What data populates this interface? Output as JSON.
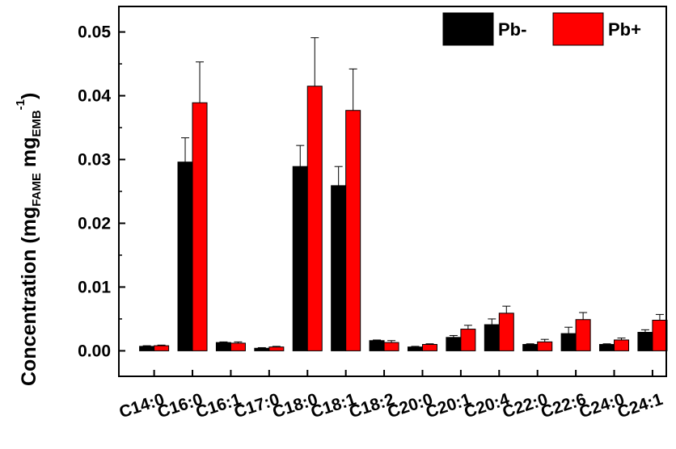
{
  "chart_data": {
    "type": "bar",
    "ylabel": {
      "main": "Concentration (mg",
      "sub1": "FAME",
      "mid": " mg",
      "sub2": "EMB",
      "sup": "-1",
      "close": ")"
    },
    "xlabel": "",
    "ylim": [
      -0.004,
      0.054
    ],
    "yticks": [
      "0.00",
      "0.01",
      "0.02",
      "0.03",
      "0.04",
      "0.05"
    ],
    "ytick_values": [
      0.0,
      0.01,
      0.02,
      0.03,
      0.04,
      0.05
    ],
    "grid": false,
    "legend_position": "top-right",
    "categories": [
      "C14:0",
      "C16:0",
      "C16:1",
      "C17:0",
      "C18:0",
      "C18:1",
      "C18:2",
      "C20:0",
      "C20:1",
      "C20:4",
      "C22:0",
      "C22:6",
      "C24:0",
      "C24:1"
    ],
    "series": [
      {
        "name": "Pb-",
        "color": "#000000",
        "values": [
          0.0007,
          0.0296,
          0.0013,
          0.0004,
          0.0289,
          0.0259,
          0.0016,
          0.0006,
          0.0021,
          0.0041,
          0.001,
          0.0027,
          0.001,
          0.0029
        ],
        "errors": [
          0.0001,
          0.0038,
          0.0001,
          0.0001,
          0.0033,
          0.003,
          0.0001,
          0.0001,
          0.0003,
          0.0009,
          0.0001,
          0.001,
          0.0001,
          0.0004
        ]
      },
      {
        "name": "Pb+",
        "color": "#ff0000",
        "values": [
          0.0008,
          0.0389,
          0.0012,
          0.0006,
          0.0415,
          0.0377,
          0.0013,
          0.001,
          0.0034,
          0.0059,
          0.0014,
          0.0049,
          0.0017,
          0.0048
        ],
        "errors": [
          0.0001,
          0.0064,
          0.0002,
          0.0001,
          0.0076,
          0.0065,
          0.0003,
          0.0001,
          0.0006,
          0.0011,
          0.0004,
          0.0011,
          0.0003,
          0.0009
        ]
      }
    ]
  }
}
